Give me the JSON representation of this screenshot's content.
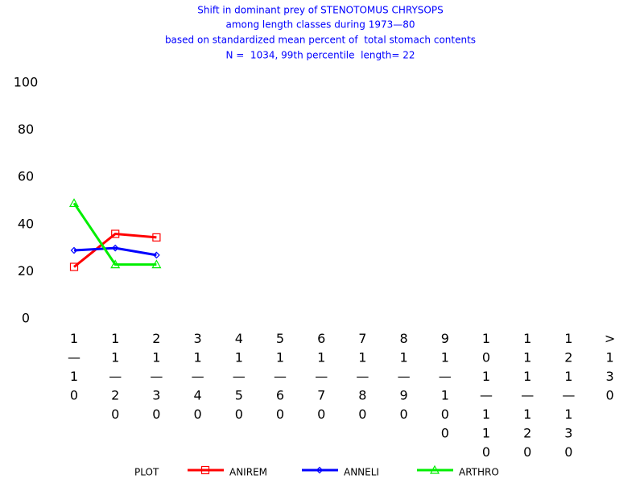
{
  "chart_data": {
    "type": "line",
    "title": [
      "Shift in dominant prey of STENOTOMUS CHRYSOPS",
      "among length classes during 1973—80",
      "based on standardized mean percent of  total stomach contents",
      "N =  1034, 99th percentile  length= 22"
    ],
    "categories": [
      "1—10",
      "11—20",
      "21—30",
      "31—40",
      "41—50",
      "51—60",
      "61—70",
      "71—80",
      "81—90",
      "91—100",
      "101—110",
      "111—120",
      "121—130",
      ">130"
    ],
    "series": [
      {
        "name": "ANIREM",
        "color": "#ff0000",
        "marker": "square",
        "values": [
          22,
          36,
          34.5,
          null,
          null,
          null,
          null,
          null,
          null,
          null,
          null,
          null,
          null,
          null
        ]
      },
      {
        "name": "ANNELI",
        "color": "#0000ff",
        "marker": "diamond",
        "values": [
          29,
          30,
          27,
          null,
          null,
          null,
          null,
          null,
          null,
          null,
          null,
          null,
          null,
          null
        ]
      },
      {
        "name": "ARTHRO",
        "color": "#00ee00",
        "marker": "triangle",
        "values": [
          49,
          23,
          23,
          null,
          null,
          null,
          null,
          null,
          null,
          null,
          null,
          null,
          null,
          null
        ]
      }
    ],
    "ylim": [
      0,
      100
    ],
    "yticks": [
      0,
      20,
      40,
      60,
      80,
      100
    ],
    "legend_title": "PLOT",
    "legend": "bottom"
  }
}
